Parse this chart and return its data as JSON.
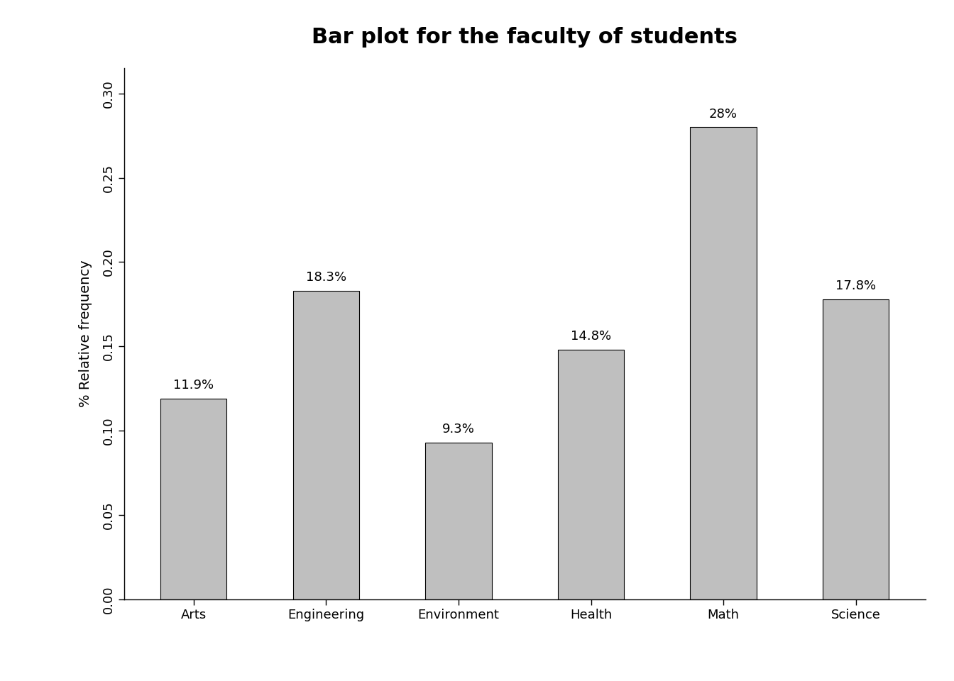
{
  "categories": [
    "Arts",
    "Engineering",
    "Environment",
    "Health",
    "Math",
    "Science"
  ],
  "values": [
    0.119,
    0.183,
    0.093,
    0.148,
    0.28,
    0.178
  ],
  "labels": [
    "11.9%",
    "18.3%",
    "9.3%",
    "14.8%",
    "28%",
    "17.8%"
  ],
  "bar_color": "#bfbfbf",
  "bar_edgecolor": "#000000",
  "title": "Bar plot for the faculty of students",
  "ylabel": "% Relative frequency",
  "ylim": [
    0,
    0.315
  ],
  "yticks": [
    0.0,
    0.05,
    0.1,
    0.15,
    0.2,
    0.25,
    0.3
  ],
  "background_color": "#ffffff",
  "title_fontsize": 22,
  "title_fontweight": "bold",
  "label_fontsize": 13,
  "tick_fontsize": 13,
  "ylabel_fontsize": 14
}
